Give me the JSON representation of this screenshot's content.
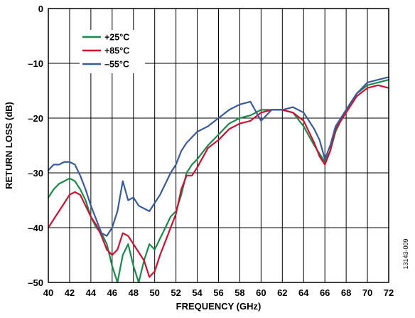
{
  "chart_data": {
    "type": "line",
    "xlabel": "FREQUENCY (GHz)",
    "ylabel": "RETURN LOSS (dB)",
    "xlim": [
      40,
      72
    ],
    "ylim": [
      -50,
      0
    ],
    "x_ticks": [
      "40",
      "42",
      "44",
      "46",
      "48",
      "50",
      "52",
      "54",
      "56",
      "58",
      "60",
      "62",
      "64",
      "66",
      "68",
      "70",
      "72"
    ],
    "y_ticks": [
      "0",
      "–10",
      "–20",
      "–30",
      "–40",
      "–50"
    ],
    "grid": true,
    "legend_position": "top-left",
    "figure_id": "13143-009",
    "series": [
      {
        "name": "+25°C",
        "color": "#1a8a4a",
        "points": [
          [
            40,
            -34.5
          ],
          [
            40.5,
            -33
          ],
          [
            41,
            -32
          ],
          [
            41.5,
            -31.5
          ],
          [
            42,
            -31
          ],
          [
            42.5,
            -31.5
          ],
          [
            43,
            -33
          ],
          [
            43.5,
            -35
          ],
          [
            44,
            -38
          ],
          [
            44.5,
            -40
          ],
          [
            45,
            -41
          ],
          [
            45.5,
            -43
          ],
          [
            46,
            -47
          ],
          [
            46.5,
            -50
          ],
          [
            47,
            -45
          ],
          [
            47.5,
            -43
          ],
          [
            48,
            -47
          ],
          [
            48.5,
            -50
          ],
          [
            49,
            -46
          ],
          [
            49.5,
            -43
          ],
          [
            50,
            -44
          ],
          [
            50.5,
            -42
          ],
          [
            51,
            -40
          ],
          [
            51.5,
            -38
          ],
          [
            52,
            -37
          ],
          [
            52.5,
            -34
          ],
          [
            53,
            -30
          ],
          [
            53.5,
            -28.5
          ],
          [
            54,
            -27.5
          ],
          [
            55,
            -25
          ],
          [
            56,
            -23
          ],
          [
            57,
            -21
          ],
          [
            58,
            -20
          ],
          [
            59,
            -19.5
          ],
          [
            60,
            -18.5
          ],
          [
            61,
            -18.5
          ],
          [
            62,
            -18.5
          ],
          [
            63,
            -19
          ],
          [
            64,
            -21.5
          ],
          [
            65,
            -25
          ],
          [
            65.5,
            -26.5
          ],
          [
            66,
            -28
          ],
          [
            66.5,
            -26
          ],
          [
            67,
            -22.5
          ],
          [
            68,
            -18.5
          ],
          [
            69,
            -15.5
          ],
          [
            70,
            -14
          ],
          [
            71,
            -13.5
          ],
          [
            72,
            -13
          ]
        ]
      },
      {
        "name": "+85°C",
        "color": "#cc1133",
        "points": [
          [
            40,
            -40
          ],
          [
            40.5,
            -38.5
          ],
          [
            41,
            -37
          ],
          [
            41.5,
            -35.5
          ],
          [
            42,
            -34
          ],
          [
            42.5,
            -33.5
          ],
          [
            43,
            -34
          ],
          [
            43.5,
            -36
          ],
          [
            44,
            -38
          ],
          [
            44.5,
            -39.5
          ],
          [
            45,
            -41.5
          ],
          [
            45.5,
            -44
          ],
          [
            46,
            -45
          ],
          [
            46.5,
            -44
          ],
          [
            47,
            -41
          ],
          [
            47.5,
            -41.5
          ],
          [
            48,
            -43
          ],
          [
            48.5,
            -44.5
          ],
          [
            49,
            -46
          ],
          [
            49.5,
            -49
          ],
          [
            50,
            -48
          ],
          [
            50.5,
            -45
          ],
          [
            51,
            -42.5
          ],
          [
            51.5,
            -40
          ],
          [
            52,
            -37.5
          ],
          [
            52.5,
            -33
          ],
          [
            53,
            -30.5
          ],
          [
            53.5,
            -30.5
          ],
          [
            54,
            -29
          ],
          [
            55,
            -25.5
          ],
          [
            56,
            -24
          ],
          [
            57,
            -22
          ],
          [
            58,
            -21
          ],
          [
            59,
            -20.5
          ],
          [
            60,
            -19
          ],
          [
            61,
            -18.5
          ],
          [
            62,
            -18.5
          ],
          [
            63,
            -19
          ],
          [
            64,
            -20.5
          ],
          [
            65,
            -24.5
          ],
          [
            65.5,
            -27
          ],
          [
            66,
            -28.5
          ],
          [
            66.5,
            -26
          ],
          [
            67,
            -22
          ],
          [
            68,
            -19
          ],
          [
            69,
            -16
          ],
          [
            70,
            -14.5
          ],
          [
            71,
            -14
          ],
          [
            72,
            -14.5
          ]
        ]
      },
      {
        "name": "–55°C",
        "color": "#3a5a9a",
        "points": [
          [
            40,
            -29.5
          ],
          [
            40.5,
            -28.5
          ],
          [
            41,
            -28.5
          ],
          [
            41.5,
            -28
          ],
          [
            42,
            -28
          ],
          [
            42.5,
            -28.5
          ],
          [
            43,
            -30.5
          ],
          [
            43.5,
            -33
          ],
          [
            44,
            -36
          ],
          [
            44.5,
            -38.5
          ],
          [
            45,
            -41
          ],
          [
            45.5,
            -41.5
          ],
          [
            46,
            -40
          ],
          [
            46.5,
            -37
          ],
          [
            47,
            -31.5
          ],
          [
            47.5,
            -35
          ],
          [
            48,
            -34.5
          ],
          [
            48.5,
            -36
          ],
          [
            49,
            -36.5
          ],
          [
            49.5,
            -37
          ],
          [
            50,
            -35.5
          ],
          [
            50.5,
            -34
          ],
          [
            51,
            -32
          ],
          [
            51.5,
            -30
          ],
          [
            52,
            -28.5
          ],
          [
            52.5,
            -26
          ],
          [
            53,
            -24.5
          ],
          [
            53.5,
            -23.5
          ],
          [
            54,
            -22.5
          ],
          [
            55,
            -21.5
          ],
          [
            56,
            -20
          ],
          [
            57,
            -18.5
          ],
          [
            58,
            -17.5
          ],
          [
            59,
            -17
          ],
          [
            60,
            -20.5
          ],
          [
            61,
            -18.5
          ],
          [
            62,
            -18.5
          ],
          [
            63,
            -18
          ],
          [
            64,
            -19
          ],
          [
            65,
            -22
          ],
          [
            65.5,
            -24
          ],
          [
            66,
            -27.5
          ],
          [
            66.5,
            -25
          ],
          [
            67,
            -21.5
          ],
          [
            68,
            -18.5
          ],
          [
            69,
            -15.5
          ],
          [
            70,
            -13.5
          ],
          [
            71,
            -13
          ],
          [
            72,
            -12.5
          ]
        ]
      }
    ]
  }
}
